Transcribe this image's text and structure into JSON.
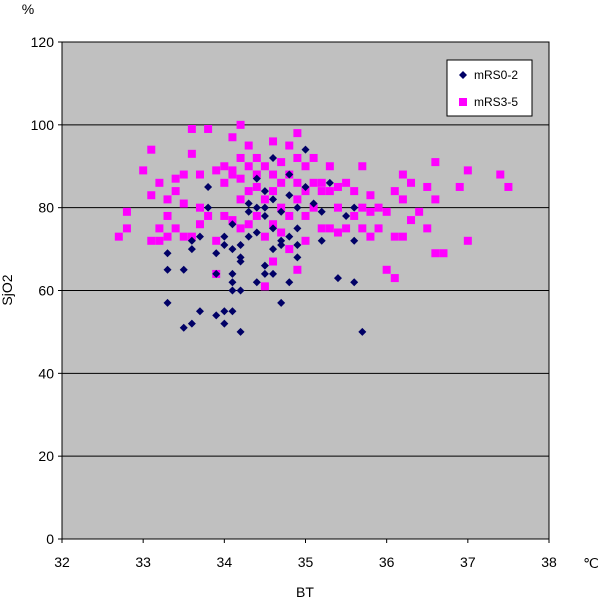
{
  "chart_data": {
    "type": "scatter",
    "xlabel": "BT",
    "ylabel": "SjO2",
    "x_unit": "℃",
    "y_unit": "%",
    "xlim": [
      32,
      38
    ],
    "ylim": [
      0,
      120
    ],
    "x_ticks": [
      "32",
      "33",
      "34",
      "35",
      "36",
      "37",
      "38"
    ],
    "y_ticks": [
      "0",
      "20",
      "40",
      "60",
      "80",
      "100",
      "120"
    ],
    "grid": true,
    "legend_position": "top-right",
    "plot_background": "#c0c0c0",
    "series": [
      {
        "name": "mRS0-2",
        "marker": "diamond",
        "color": "#000066",
        "points": [
          [
            33.3,
            69
          ],
          [
            33.3,
            65
          ],
          [
            33.3,
            57
          ],
          [
            33.5,
            65
          ],
          [
            33.5,
            51
          ],
          [
            33.6,
            52
          ],
          [
            33.6,
            70
          ],
          [
            33.6,
            72
          ],
          [
            33.7,
            55
          ],
          [
            33.7,
            73
          ],
          [
            33.8,
            80
          ],
          [
            33.8,
            85
          ],
          [
            33.9,
            69
          ],
          [
            33.9,
            54
          ],
          [
            33.9,
            64
          ],
          [
            34.0,
            52
          ],
          [
            34.0,
            55
          ],
          [
            34.0,
            71
          ],
          [
            34.0,
            73
          ],
          [
            34.1,
            55
          ],
          [
            34.1,
            62
          ],
          [
            34.1,
            60
          ],
          [
            34.1,
            64
          ],
          [
            34.1,
            70
          ],
          [
            34.1,
            76
          ],
          [
            34.2,
            60
          ],
          [
            34.2,
            67
          ],
          [
            34.2,
            68
          ],
          [
            34.2,
            50
          ],
          [
            34.2,
            71
          ],
          [
            34.3,
            73
          ],
          [
            34.3,
            79
          ],
          [
            34.3,
            81
          ],
          [
            34.4,
            62
          ],
          [
            34.4,
            74
          ],
          [
            34.4,
            80
          ],
          [
            34.4,
            87
          ],
          [
            34.5,
            78
          ],
          [
            34.5,
            84
          ],
          [
            34.5,
            80
          ],
          [
            34.5,
            64
          ],
          [
            34.5,
            66
          ],
          [
            34.6,
            70
          ],
          [
            34.6,
            92
          ],
          [
            34.6,
            82
          ],
          [
            34.6,
            75
          ],
          [
            34.6,
            64
          ],
          [
            34.7,
            79
          ],
          [
            34.7,
            57
          ],
          [
            34.7,
            71
          ],
          [
            34.7,
            72
          ],
          [
            34.8,
            83
          ],
          [
            34.8,
            73
          ],
          [
            34.8,
            62
          ],
          [
            34.8,
            88
          ],
          [
            34.9,
            68
          ],
          [
            34.9,
            75
          ],
          [
            34.9,
            71
          ],
          [
            34.9,
            80
          ],
          [
            35.0,
            94
          ],
          [
            35.0,
            85
          ],
          [
            35.1,
            81
          ],
          [
            35.2,
            72
          ],
          [
            35.2,
            79
          ],
          [
            35.3,
            86
          ],
          [
            35.4,
            63
          ],
          [
            35.5,
            78
          ],
          [
            35.6,
            62
          ],
          [
            35.6,
            72
          ],
          [
            35.6,
            80
          ],
          [
            35.7,
            50
          ]
        ]
      },
      {
        "name": "mRS3-5",
        "marker": "square",
        "color": "#ff00ff",
        "points": [
          [
            32.7,
            73
          ],
          [
            32.8,
            75
          ],
          [
            32.8,
            79
          ],
          [
            33.0,
            89
          ],
          [
            33.1,
            72
          ],
          [
            33.1,
            94
          ],
          [
            33.1,
            83
          ],
          [
            33.2,
            72
          ],
          [
            33.2,
            75
          ],
          [
            33.2,
            86
          ],
          [
            33.3,
            82
          ],
          [
            33.3,
            78
          ],
          [
            33.3,
            73
          ],
          [
            33.4,
            75
          ],
          [
            33.4,
            84
          ],
          [
            33.4,
            87
          ],
          [
            33.5,
            81
          ],
          [
            33.5,
            88
          ],
          [
            33.5,
            73
          ],
          [
            33.6,
            99
          ],
          [
            33.6,
            93
          ],
          [
            33.6,
            73
          ],
          [
            33.7,
            88
          ],
          [
            33.7,
            76
          ],
          [
            33.7,
            80
          ],
          [
            33.8,
            99
          ],
          [
            33.8,
            78
          ],
          [
            33.9,
            89
          ],
          [
            33.9,
            72
          ],
          [
            33.9,
            64
          ],
          [
            34.0,
            86
          ],
          [
            34.0,
            90
          ],
          [
            34.0,
            78
          ],
          [
            34.1,
            88
          ],
          [
            34.1,
            89
          ],
          [
            34.1,
            97
          ],
          [
            34.1,
            77
          ],
          [
            34.2,
            100
          ],
          [
            34.2,
            92
          ],
          [
            34.2,
            87
          ],
          [
            34.2,
            82
          ],
          [
            34.2,
            75
          ],
          [
            34.3,
            95
          ],
          [
            34.3,
            90
          ],
          [
            34.3,
            84
          ],
          [
            34.3,
            76
          ],
          [
            34.4,
            85
          ],
          [
            34.4,
            88
          ],
          [
            34.4,
            92
          ],
          [
            34.4,
            78
          ],
          [
            34.5,
            90
          ],
          [
            34.5,
            82
          ],
          [
            34.5,
            73
          ],
          [
            34.5,
            61
          ],
          [
            34.6,
            96
          ],
          [
            34.6,
            88
          ],
          [
            34.6,
            84
          ],
          [
            34.6,
            76
          ],
          [
            34.6,
            67
          ],
          [
            34.7,
            91
          ],
          [
            34.7,
            86
          ],
          [
            34.7,
            80
          ],
          [
            34.7,
            74
          ],
          [
            34.8,
            95
          ],
          [
            34.8,
            88
          ],
          [
            34.8,
            78
          ],
          [
            34.8,
            70
          ],
          [
            34.9,
            98
          ],
          [
            34.9,
            92
          ],
          [
            34.9,
            86
          ],
          [
            34.9,
            82
          ],
          [
            34.9,
            65
          ],
          [
            35.0,
            90
          ],
          [
            35.0,
            84
          ],
          [
            35.0,
            78
          ],
          [
            35.0,
            72
          ],
          [
            35.1,
            92
          ],
          [
            35.1,
            86
          ],
          [
            35.1,
            80
          ],
          [
            35.2,
            86
          ],
          [
            35.2,
            84
          ],
          [
            35.2,
            75
          ],
          [
            35.3,
            90
          ],
          [
            35.3,
            84
          ],
          [
            35.3,
            75
          ],
          [
            35.4,
            85
          ],
          [
            35.4,
            80
          ],
          [
            35.4,
            74
          ],
          [
            35.5,
            86
          ],
          [
            35.5,
            75
          ],
          [
            35.6,
            84
          ],
          [
            35.6,
            78
          ],
          [
            35.7,
            90
          ],
          [
            35.7,
            80
          ],
          [
            35.7,
            75
          ],
          [
            35.8,
            83
          ],
          [
            35.8,
            79
          ],
          [
            35.8,
            73
          ],
          [
            35.9,
            80
          ],
          [
            35.9,
            75
          ],
          [
            36.0,
            79
          ],
          [
            36.0,
            65
          ],
          [
            36.1,
            84
          ],
          [
            36.1,
            73
          ],
          [
            36.1,
            63
          ],
          [
            36.2,
            88
          ],
          [
            36.2,
            82
          ],
          [
            36.2,
            73
          ],
          [
            36.3,
            86
          ],
          [
            36.3,
            77
          ],
          [
            36.4,
            79
          ],
          [
            36.5,
            85
          ],
          [
            36.5,
            75
          ],
          [
            36.6,
            91
          ],
          [
            36.6,
            82
          ],
          [
            36.6,
            69
          ],
          [
            36.7,
            69
          ],
          [
            36.9,
            85
          ],
          [
            37.0,
            89
          ],
          [
            37.0,
            72
          ],
          [
            37.4,
            88
          ],
          [
            37.5,
            85
          ]
        ]
      }
    ]
  }
}
